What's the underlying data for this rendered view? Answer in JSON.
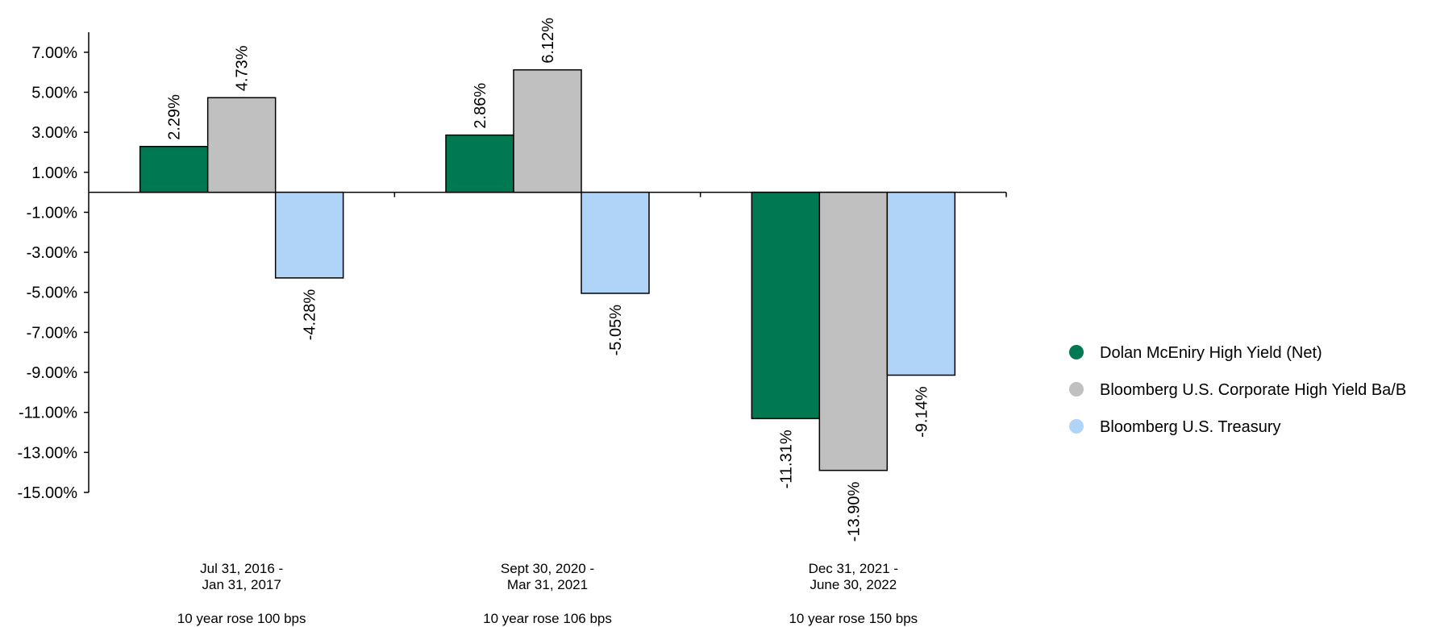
{
  "chart_data": {
    "type": "bar",
    "title": "",
    "xlabel": "",
    "ylabel": "",
    "ylim": [
      -15,
      8
    ],
    "y_ticks": [
      7,
      5,
      3,
      1,
      -1,
      -3,
      -5,
      -7,
      -9,
      -11,
      -13,
      -15
    ],
    "y_tick_labels": [
      "7.00%",
      "5.00%",
      "3.00%",
      "1.00%",
      "-1.00%",
      "-3.00%",
      "-5.00%",
      "-7.00%",
      "-9.00%",
      "-11.00%",
      "-13.00%",
      "-15.00%"
    ],
    "categories": [
      [
        "Jul 31, 2016 -",
        "Jan 31, 2017"
      ],
      [
        "Sept 30, 2020 -",
        "Mar 31, 2021"
      ],
      [
        "Dec 31, 2021 -",
        "June 30, 2022"
      ]
    ],
    "category_notes": [
      "10 year rose 100 bps",
      "10 year rose 106 bps",
      "10 year rose 150 bps"
    ],
    "series": [
      {
        "name": "Dolan McEniry High Yield (Net)",
        "color": "#007852",
        "values": [
          2.29,
          2.86,
          -11.31
        ],
        "labels": [
          "2.29%",
          "2.86%",
          "-11.31%"
        ]
      },
      {
        "name": "Bloomberg U.S. Corporate High Yield Ba/B",
        "color": "#c0c0c0",
        "values": [
          4.73,
          6.12,
          -13.9
        ],
        "labels": [
          "4.73%",
          "6.12%",
          "-13.90%"
        ]
      },
      {
        "name": "Bloomberg U.S. Treasury",
        "color": "#b0d4f8",
        "values": [
          -4.28,
          -5.05,
          -9.14
        ],
        "labels": [
          "-4.28%",
          "-5.05%",
          "-9.14%"
        ]
      }
    ],
    "grid": false,
    "legend_position": "right"
  }
}
